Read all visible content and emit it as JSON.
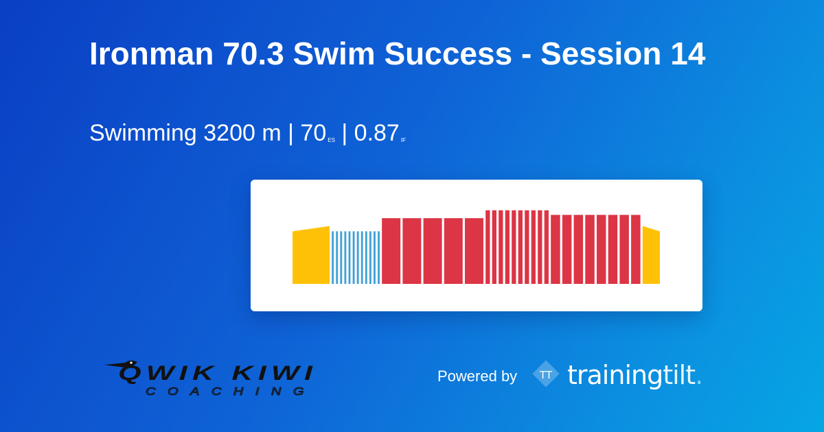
{
  "header": {
    "title": "Ironman 70.3 Swim Success - Session 14",
    "sport": "Swimming",
    "distance": "3200 m",
    "sep1": "|",
    "es_value": "70",
    "es_label": "ES",
    "sep2": "|",
    "if_value": "0.87",
    "if_label": "IF"
  },
  "chart_data": {
    "type": "bar",
    "colors": {
      "warmup": "#ffc107",
      "drill": "#40a0d8",
      "main": "#dc3545"
    },
    "ylim": [
      0,
      1.2
    ],
    "segments": [
      {
        "zone": "warmup",
        "duration": 60,
        "start": 0.8,
        "end": 0.88
      },
      {
        "zone": "drill",
        "duration": 3.2,
        "value": 0.8
      },
      {
        "zone": "drill",
        "duration": 3.2,
        "value": 0.8
      },
      {
        "zone": "drill",
        "duration": 3.2,
        "value": 0.8
      },
      {
        "zone": "drill",
        "duration": 3.2,
        "value": 0.8
      },
      {
        "zone": "drill",
        "duration": 3.2,
        "value": 0.8
      },
      {
        "zone": "drill",
        "duration": 3.2,
        "value": 0.8
      },
      {
        "zone": "drill",
        "duration": 3.2,
        "value": 0.8
      },
      {
        "zone": "drill",
        "duration": 3.2,
        "value": 0.8
      },
      {
        "zone": "drill",
        "duration": 3.2,
        "value": 0.8
      },
      {
        "zone": "drill",
        "duration": 3.2,
        "value": 0.8
      },
      {
        "zone": "drill",
        "duration": 3.2,
        "value": 0.8
      },
      {
        "zone": "drill",
        "duration": 3.2,
        "value": 0.8
      },
      {
        "zone": "main",
        "duration": 30,
        "value": 1.0
      },
      {
        "zone": "main",
        "duration": 30,
        "value": 1.0
      },
      {
        "zone": "main",
        "duration": 30,
        "value": 1.0
      },
      {
        "zone": "main",
        "duration": 30,
        "value": 1.0
      },
      {
        "zone": "main",
        "duration": 30,
        "value": 1.0
      },
      {
        "zone": "main",
        "duration": 7,
        "value": 1.12
      },
      {
        "zone": "main",
        "duration": 7,
        "value": 1.12
      },
      {
        "zone": "main",
        "duration": 7,
        "value": 1.12
      },
      {
        "zone": "main",
        "duration": 7,
        "value": 1.12
      },
      {
        "zone": "main",
        "duration": 7,
        "value": 1.12
      },
      {
        "zone": "main",
        "duration": 7,
        "value": 1.12
      },
      {
        "zone": "main",
        "duration": 7,
        "value": 1.12
      },
      {
        "zone": "main",
        "duration": 7,
        "value": 1.12
      },
      {
        "zone": "main",
        "duration": 7,
        "value": 1.12
      },
      {
        "zone": "main",
        "duration": 7,
        "value": 1.12
      },
      {
        "zone": "main",
        "duration": 15,
        "value": 1.05
      },
      {
        "zone": "main",
        "duration": 15,
        "value": 1.05
      },
      {
        "zone": "main",
        "duration": 15,
        "value": 1.05
      },
      {
        "zone": "main",
        "duration": 15,
        "value": 1.05
      },
      {
        "zone": "main",
        "duration": 15,
        "value": 1.05
      },
      {
        "zone": "main",
        "duration": 15,
        "value": 1.05
      },
      {
        "zone": "main",
        "duration": 15,
        "value": 1.05
      },
      {
        "zone": "main",
        "duration": 15,
        "value": 1.05
      },
      {
        "zone": "warmup",
        "duration": 28,
        "start": 0.88,
        "end": 0.8
      }
    ]
  },
  "footer": {
    "coach_logo_line1": "QWIK KIWI",
    "coach_logo_line2": "COACHING",
    "powered_by": "Powered by",
    "brand_mark": "TT",
    "brand_name_a": "training",
    "brand_name_b": "tilt",
    "brand_dot": "."
  }
}
